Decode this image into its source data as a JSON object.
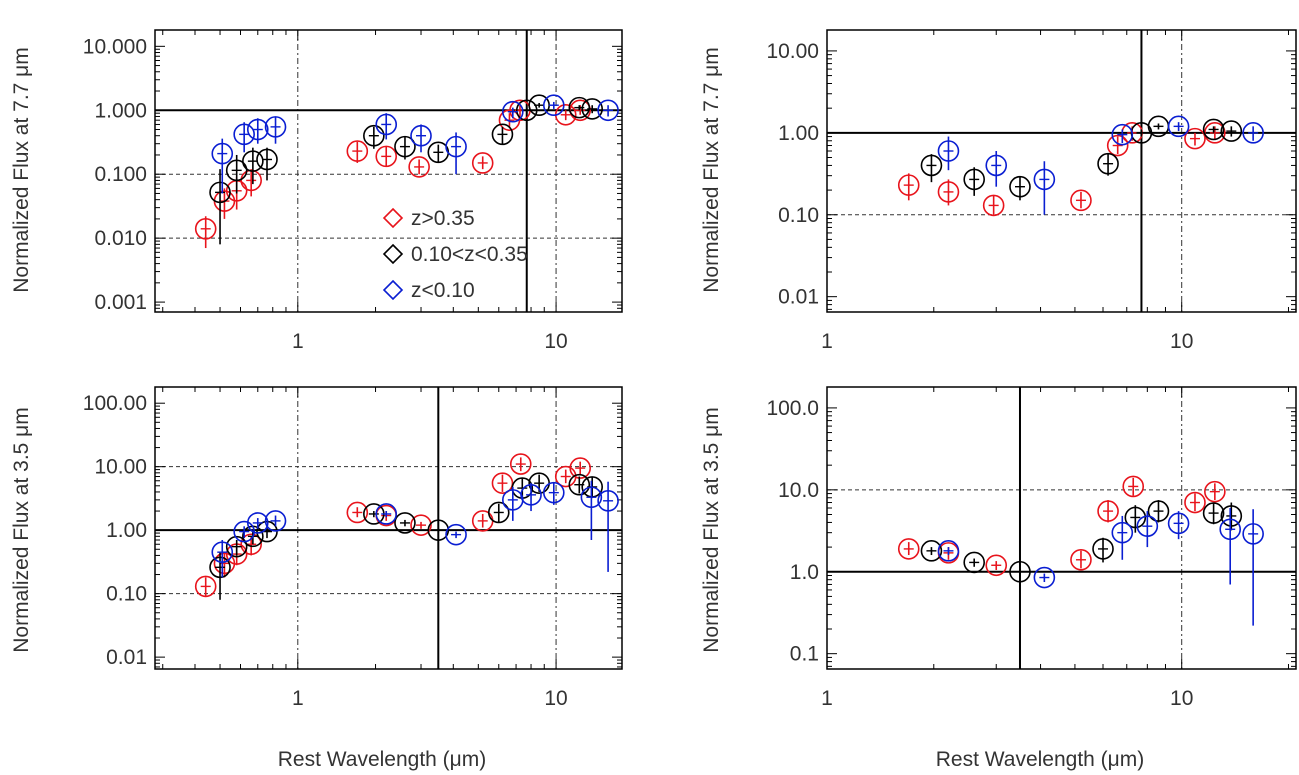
{
  "xlabel": "Rest Wavelength (μm)",
  "legend": [
    {
      "label": "z>0.35",
      "color": "#e8141c"
    },
    {
      "label": "0.10<z<0.35",
      "color": "#000000"
    },
    {
      "label": "z<0.10",
      "color": "#0a1ed2"
    }
  ],
  "chart_data": [
    {
      "type": "scatter",
      "panel": "top-left",
      "ylabel": "Normalized Flux at 7.7 μm",
      "xscale": "log",
      "yscale": "log",
      "xlim": [
        0.28,
        18
      ],
      "ylim": [
        0.0007,
        18
      ],
      "xticks": [
        {
          "value": 1,
          "label": "1"
        },
        {
          "value": 10,
          "label": "10"
        }
      ],
      "yticks": [
        {
          "value": 0.001,
          "label": "0.001"
        },
        {
          "value": 0.01,
          "label": "0.010"
        },
        {
          "value": 0.1,
          "label": "0.100"
        },
        {
          "value": 1,
          "label": "1.000"
        },
        {
          "value": 10,
          "label": "10.000"
        }
      ],
      "ref_solid_h": 1,
      "ref_solid_v": 7.7,
      "ref_dotted_v": [
        1,
        10
      ],
      "ref_dashed_h": [
        0.1,
        0.01
      ],
      "legend_position": "center",
      "series": [
        {
          "color": "#e8141c",
          "points": [
            [
              0.44,
              0.014,
              0.007,
              0.022
            ],
            [
              0.52,
              0.038,
              0.02,
              0.06
            ],
            [
              0.58,
              0.055,
              0.028,
              0.09
            ],
            [
              0.66,
              0.08,
              0.045,
              0.12
            ],
            [
              1.7,
              0.23,
              0.15,
              0.32
            ],
            [
              2.2,
              0.19,
              0.13,
              0.27
            ],
            [
              2.95,
              0.13,
              0.1,
              0.17
            ],
            [
              5.2,
              0.15,
              0.12,
              0.19
            ],
            [
              6.6,
              0.7,
              0.55,
              0.9
            ],
            [
              7.25,
              1.0,
              0.8,
              1.2
            ],
            [
              10.9,
              0.85,
              0.7,
              1.0
            ],
            [
              12.4,
              1.0,
              0.85,
              1.2
            ]
          ]
        },
        {
          "color": "#000000",
          "points": [
            [
              0.5,
              0.052,
              0.008,
              0.12
            ],
            [
              0.58,
              0.115,
              0.05,
              0.2
            ],
            [
              0.67,
              0.16,
              0.07,
              0.26
            ],
            [
              0.76,
              0.17,
              0.08,
              0.26
            ],
            [
              1.97,
              0.4,
              0.25,
              0.55
            ],
            [
              2.6,
              0.27,
              0.17,
              0.38
            ],
            [
              3.5,
              0.22,
              0.15,
              0.29
            ],
            [
              6.2,
              0.42,
              0.3,
              0.55
            ],
            [
              7.7,
              1.0,
              0.9,
              1.1
            ],
            [
              8.6,
              1.2,
              1.1,
              1.3
            ],
            [
              12.3,
              1.1,
              1.0,
              1.2
            ],
            [
              13.8,
              1.05,
              0.9,
              1.2
            ]
          ]
        },
        {
          "color": "#0a1ed2",
          "points": [
            [
              0.51,
              0.21,
              0.05,
              0.36
            ],
            [
              0.62,
              0.42,
              0.22,
              0.65
            ],
            [
              0.7,
              0.5,
              0.3,
              0.75
            ],
            [
              0.82,
              0.55,
              0.3,
              0.8
            ],
            [
              2.2,
              0.6,
              0.35,
              0.9
            ],
            [
              3.0,
              0.4,
              0.22,
              0.6
            ],
            [
              4.1,
              0.27,
              0.1,
              0.45
            ],
            [
              6.8,
              0.95,
              0.75,
              1.1
            ],
            [
              9.8,
              1.2,
              1.05,
              1.35
            ],
            [
              15.9,
              1.0,
              0.8,
              1.2
            ]
          ]
        }
      ]
    },
    {
      "type": "scatter",
      "panel": "top-right",
      "ylabel": "Normalized Flux at 7.7 μm",
      "xscale": "log",
      "yscale": "log",
      "xlim": [
        1,
        21
      ],
      "ylim": [
        0.0065,
        18
      ],
      "xticks": [
        {
          "value": 1,
          "label": "1"
        },
        {
          "value": 10,
          "label": "10"
        }
      ],
      "yticks": [
        {
          "value": 0.01,
          "label": "0.01"
        },
        {
          "value": 0.1,
          "label": "0.10"
        },
        {
          "value": 1,
          "label": "1.00"
        },
        {
          "value": 10,
          "label": "10.00"
        }
      ],
      "ref_solid_h": 1,
      "ref_solid_v": 7.7,
      "ref_dotted_v": [
        10
      ],
      "ref_dashed_h": [
        0.1
      ],
      "series": [
        {
          "color": "#e8141c",
          "points": [
            [
              1.7,
              0.23,
              0.15,
              0.32
            ],
            [
              2.2,
              0.19,
              0.13,
              0.27
            ],
            [
              2.95,
              0.13,
              0.1,
              0.17
            ],
            [
              5.2,
              0.15,
              0.12,
              0.19
            ],
            [
              6.6,
              0.7,
              0.55,
              0.9
            ],
            [
              7.25,
              1.0,
              0.8,
              1.2
            ],
            [
              10.9,
              0.85,
              0.7,
              1.0
            ],
            [
              12.4,
              1.0,
              0.85,
              1.2
            ]
          ]
        },
        {
          "color": "#000000",
          "points": [
            [
              1.97,
              0.4,
              0.25,
              0.55
            ],
            [
              2.6,
              0.27,
              0.17,
              0.38
            ],
            [
              3.5,
              0.22,
              0.15,
              0.29
            ],
            [
              6.2,
              0.42,
              0.3,
              0.55
            ],
            [
              7.7,
              1.0,
              0.9,
              1.1
            ],
            [
              8.6,
              1.2,
              1.1,
              1.3
            ],
            [
              12.3,
              1.1,
              1.0,
              1.2
            ],
            [
              13.8,
              1.05,
              0.9,
              1.2
            ]
          ]
        },
        {
          "color": "#0a1ed2",
          "points": [
            [
              2.2,
              0.6,
              0.35,
              0.9
            ],
            [
              3.0,
              0.4,
              0.22,
              0.6
            ],
            [
              4.1,
              0.27,
              0.1,
              0.45
            ],
            [
              6.8,
              0.95,
              0.75,
              1.1
            ],
            [
              9.8,
              1.2,
              1.05,
              1.35
            ],
            [
              15.9,
              1.0,
              0.8,
              1.2
            ]
          ]
        }
      ]
    },
    {
      "type": "scatter",
      "panel": "bottom-left",
      "ylabel": "Normalized Flux at 3.5 μm",
      "xscale": "log",
      "yscale": "log",
      "xlim": [
        0.28,
        18
      ],
      "ylim": [
        0.0065,
        180
      ],
      "xticks": [
        {
          "value": 1,
          "label": "1"
        },
        {
          "value": 10,
          "label": "10"
        }
      ],
      "yticks": [
        {
          "value": 0.01,
          "label": "0.01"
        },
        {
          "value": 0.1,
          "label": "0.10"
        },
        {
          "value": 1,
          "label": "1.00"
        },
        {
          "value": 10,
          "label": "10.00"
        },
        {
          "value": 100,
          "label": "100.00"
        }
      ],
      "ref_solid_h": 1,
      "ref_solid_v": 3.5,
      "ref_dotted_v": [
        1,
        10
      ],
      "ref_dashed_h": [
        10,
        0.1
      ],
      "series": [
        {
          "color": "#e8141c",
          "points": [
            [
              0.44,
              0.13,
              0.09,
              0.18
            ],
            [
              0.52,
              0.3,
              0.18,
              0.45
            ],
            [
              0.58,
              0.42,
              0.28,
              0.6
            ],
            [
              0.66,
              0.6,
              0.4,
              0.8
            ],
            [
              1.7,
              1.9,
              1.6,
              2.3
            ],
            [
              2.2,
              1.7,
              1.4,
              2.0
            ],
            [
              3.0,
              1.2,
              1.05,
              1.35
            ],
            [
              5.2,
              1.4,
              1.1,
              1.8
            ],
            [
              6.2,
              5.5,
              4.0,
              7.5
            ],
            [
              7.3,
              11.0,
              8.5,
              14.0
            ],
            [
              10.9,
              7.0,
              5.5,
              9.0
            ],
            [
              12.4,
              9.5,
              7.5,
              12.0
            ]
          ]
        },
        {
          "color": "#000000",
          "points": [
            [
              0.5,
              0.26,
              0.08,
              0.45
            ],
            [
              0.58,
              0.55,
              0.4,
              0.7
            ],
            [
              0.67,
              0.8,
              0.6,
              1.0
            ],
            [
              0.76,
              0.95,
              0.75,
              1.15
            ],
            [
              1.97,
              1.8,
              1.6,
              2.0
            ],
            [
              2.6,
              1.3,
              1.15,
              1.45
            ],
            [
              3.5,
              1.0,
              0.92,
              1.08
            ],
            [
              6.0,
              1.9,
              1.3,
              2.6
            ],
            [
              7.4,
              4.6,
              3.0,
              6.5
            ],
            [
              8.6,
              5.5,
              4.0,
              7.5
            ],
            [
              12.3,
              5.2,
              3.8,
              7.0
            ],
            [
              13.8,
              4.8,
              3.2,
              7.0
            ]
          ]
        },
        {
          "color": "#0a1ed2",
          "points": [
            [
              0.51,
              0.45,
              0.18,
              0.7
            ],
            [
              0.62,
              0.95,
              0.75,
              1.15
            ],
            [
              0.7,
              1.3,
              1.05,
              1.55
            ],
            [
              0.82,
              1.4,
              1.15,
              1.7
            ],
            [
              2.2,
              1.8,
              1.6,
              2.0
            ],
            [
              4.1,
              0.85,
              0.75,
              0.95
            ],
            [
              6.8,
              3.0,
              1.4,
              4.8
            ],
            [
              8.0,
              3.6,
              2.0,
              5.5
            ],
            [
              9.8,
              3.9,
              2.5,
              5.5
            ],
            [
              13.7,
              3.3,
              0.7,
              6.0
            ],
            [
              15.9,
              2.9,
              0.22,
              5.8
            ]
          ]
        }
      ]
    },
    {
      "type": "scatter",
      "panel": "bottom-right",
      "ylabel": "Normalized Flux at 3.5 μm",
      "xscale": "log",
      "yscale": "log",
      "xlim": [
        1,
        21
      ],
      "ylim": [
        0.065,
        180
      ],
      "xticks": [
        {
          "value": 1,
          "label": "1"
        },
        {
          "value": 10,
          "label": "10"
        }
      ],
      "yticks": [
        {
          "value": 0.1,
          "label": "0.1"
        },
        {
          "value": 1,
          "label": "1.0"
        },
        {
          "value": 10,
          "label": "10.0"
        },
        {
          "value": 100,
          "label": "100.0"
        }
      ],
      "ref_solid_h": 1,
      "ref_solid_v": 3.5,
      "ref_dotted_v": [
        10
      ],
      "ref_dashed_h": [
        10
      ],
      "series": [
        {
          "color": "#e8141c",
          "points": [
            [
              1.7,
              1.9,
              1.6,
              2.3
            ],
            [
              2.2,
              1.7,
              1.4,
              2.0
            ],
            [
              3.0,
              1.2,
              1.05,
              1.35
            ],
            [
              5.2,
              1.4,
              1.1,
              1.8
            ],
            [
              6.2,
              5.5,
              4.0,
              7.5
            ],
            [
              7.3,
              11.0,
              8.5,
              14.0
            ],
            [
              10.9,
              7.0,
              5.5,
              9.0
            ],
            [
              12.4,
              9.5,
              7.5,
              12.0
            ]
          ]
        },
        {
          "color": "#000000",
          "points": [
            [
              1.97,
              1.8,
              1.6,
              2.0
            ],
            [
              2.6,
              1.3,
              1.15,
              1.45
            ],
            [
              3.5,
              1.0,
              0.92,
              1.08
            ],
            [
              6.0,
              1.9,
              1.3,
              2.6
            ],
            [
              7.4,
              4.6,
              3.0,
              6.5
            ],
            [
              8.6,
              5.5,
              4.0,
              7.5
            ],
            [
              12.3,
              5.2,
              3.8,
              7.0
            ],
            [
              13.8,
              4.8,
              3.2,
              7.0
            ]
          ]
        },
        {
          "color": "#0a1ed2",
          "points": [
            [
              2.2,
              1.8,
              1.6,
              2.0
            ],
            [
              4.1,
              0.85,
              0.75,
              0.95
            ],
            [
              6.8,
              3.0,
              1.4,
              4.8
            ],
            [
              8.0,
              3.6,
              2.0,
              5.5
            ],
            [
              9.8,
              3.9,
              2.5,
              5.5
            ],
            [
              13.7,
              3.3,
              0.7,
              6.0
            ],
            [
              15.9,
              2.9,
              0.22,
              5.8
            ]
          ]
        }
      ]
    }
  ]
}
